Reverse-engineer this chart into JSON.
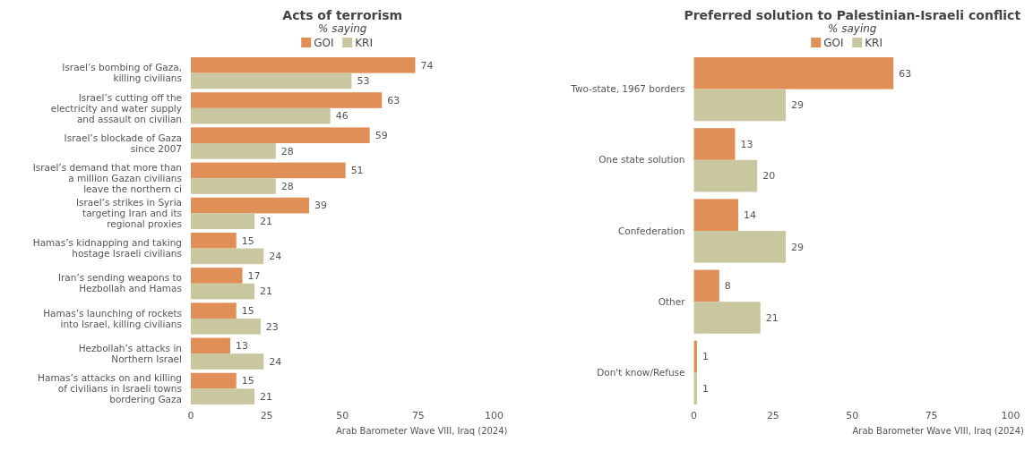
{
  "chart_data": [
    {
      "type": "bar",
      "orientation": "horizontal",
      "title": "Acts of terrorism",
      "subtitle": "% saying",
      "legend": "top",
      "categories": [
        "Israel’s bombing of Gaza, killing civilians",
        "Israel’s cutting off the electricity and water supply and assault on civilian",
        "Israel’s blockade of Gaza since 2007",
        "Israel’s demand that more than a million Gazan civilians leave the northern ci",
        "Israel’s strikes in Syria targeting Iran and its regional proxies",
        "Hamas’s kidnapping and taking hostage Israeli civilians",
        "Iran’s sending weapons to Hezbollah and Hamas",
        "Hamas’s launching of rockets into Israel, killing civilians",
        "Hezbollah’s attacks in Northern Israel",
        "Hamas’s attacks on and killing of civilians in Israeli towns bordering Gaza"
      ],
      "series": [
        {
          "name": "GOI",
          "color": "#e08f57",
          "values": [
            74,
            63,
            59,
            51,
            39,
            15,
            17,
            15,
            13,
            15
          ]
        },
        {
          "name": "KRI",
          "color": "#c8c7a0",
          "values": [
            53,
            46,
            28,
            28,
            21,
            24,
            21,
            23,
            24,
            21
          ]
        }
      ],
      "xlim": [
        0,
        100
      ],
      "xticks": [
        0,
        25,
        50,
        75,
        100
      ],
      "data_labels": true,
      "annotations": [
        "Arab Barometer Wave VIII, Iraq (2024)"
      ]
    },
    {
      "type": "bar",
      "orientation": "horizontal",
      "title": "Preferred solution to Palestinian-Israeli conflict",
      "subtitle": "% saying",
      "legend": "top",
      "categories": [
        "Two-state, 1967 borders",
        "One state solution",
        "Confederation",
        "Other",
        "Don't know/Refuse"
      ],
      "series": [
        {
          "name": "GOI",
          "color": "#e08f57",
          "values": [
            63,
            13,
            14,
            8,
            1
          ]
        },
        {
          "name": "KRI",
          "color": "#c8c7a0",
          "values": [
            29,
            20,
            29,
            21,
            1
          ]
        }
      ],
      "xlim": [
        0,
        100
      ],
      "xticks": [
        0,
        25,
        50,
        75,
        100
      ],
      "data_labels": true,
      "annotations": [
        "Arab Barometer Wave VIII, Iraq (2024)"
      ]
    }
  ]
}
